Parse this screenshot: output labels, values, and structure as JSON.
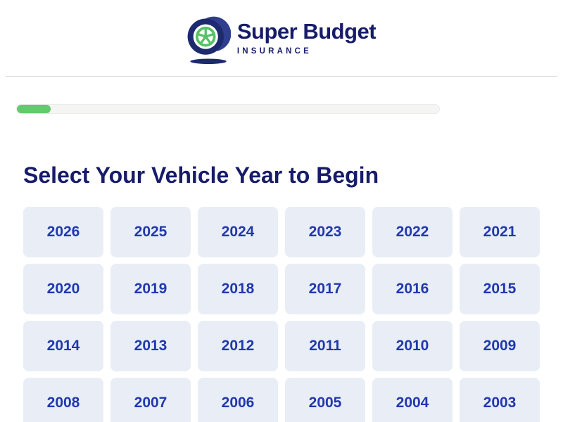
{
  "header": {
    "brand_name": "Super Budget",
    "brand_tagline": "INSURANCE",
    "logo_icon": "tire-with-green-wheel-icon"
  },
  "progress": {
    "percent": 8
  },
  "main": {
    "title": "Select Your Vehicle Year to Begin"
  },
  "years": {
    "items": [
      "2026",
      "2025",
      "2024",
      "2023",
      "2022",
      "2021",
      "2020",
      "2019",
      "2018",
      "2017",
      "2016",
      "2015",
      "2014",
      "2013",
      "2012",
      "2011",
      "2010",
      "2009",
      "2008",
      "2007",
      "2006",
      "2005",
      "2004",
      "2003"
    ]
  },
  "colors": {
    "brand_navy": "#171c69",
    "brand_green": "#57c167",
    "tire_navy": "#1d2a6e",
    "tire_navy_light": "#2f3e8e",
    "year_button_bg": "#e9eef6",
    "year_button_text": "#2138ae",
    "progress_fill": "#65c96f",
    "progress_track": "#f5f5f3",
    "divider": "#dcdcdc"
  }
}
